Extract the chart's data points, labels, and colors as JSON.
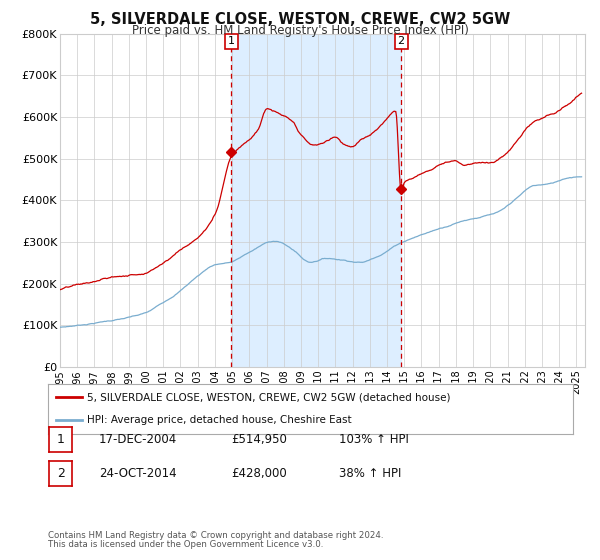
{
  "title": "5, SILVERDALE CLOSE, WESTON, CREWE, CW2 5GW",
  "subtitle": "Price paid vs. HM Land Registry's House Price Index (HPI)",
  "red_label": "5, SILVERDALE CLOSE, WESTON, CREWE, CW2 5GW (detached house)",
  "blue_label": "HPI: Average price, detached house, Cheshire East",
  "transaction1_date": "17-DEC-2004",
  "transaction1_price": 514950,
  "transaction1_pct": "103% ↑ HPI",
  "transaction2_date": "24-OCT-2014",
  "transaction2_price": 428000,
  "transaction2_pct": "38% ↑ HPI",
  "marker1_x": 2004.96,
  "marker2_x": 2014.82,
  "marker1_red_y": 514950,
  "marker2_red_y": 428000,
  "ylim": [
    0,
    800000
  ],
  "yticks": [
    0,
    100000,
    200000,
    300000,
    400000,
    500000,
    600000,
    700000,
    800000
  ],
  "xmin": 1995.0,
  "xmax": 2025.5,
  "footer1": "Contains HM Land Registry data © Crown copyright and database right 2024.",
  "footer2": "This data is licensed under the Open Government Licence v3.0.",
  "red_color": "#cc0000",
  "blue_color": "#7aadcf",
  "shade_color": "#ddeeff",
  "grid_color": "#cccccc",
  "bg_color": "#ffffff"
}
